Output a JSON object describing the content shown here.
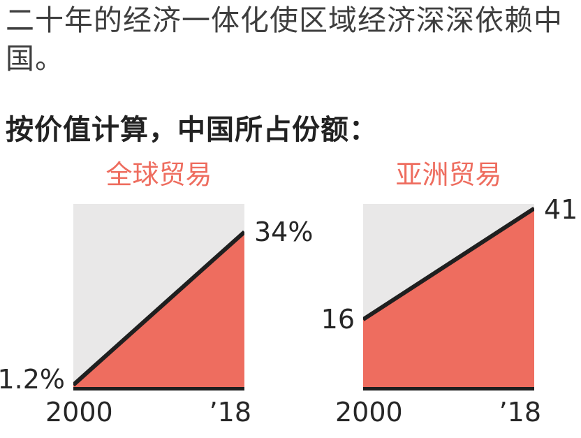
{
  "intro": "二十年的经济一体化使区域经济深深依赖中国。",
  "heading": "按价值计算，中国所占份额：",
  "colors": {
    "accent": "#ee6d5f",
    "chart_bg": "#e9e8e8",
    "line": "#1f1f1f",
    "text": "#3e3e3e"
  },
  "chart_data": [
    {
      "type": "area",
      "title": "全球贸易",
      "x": [
        "2000",
        "’18"
      ],
      "values": [
        1.2,
        34
      ],
      "start_label": "1.2%",
      "end_label": "34%",
      "ylim": [
        0,
        40
      ],
      "grid": false,
      "legend": "none"
    },
    {
      "type": "area",
      "title": "亚洲贸易",
      "x": [
        "2000",
        "’18"
      ],
      "values": [
        16,
        41
      ],
      "start_label": "16",
      "end_label": "41",
      "ylim": [
        0,
        42
      ],
      "grid": false,
      "legend": "none"
    }
  ]
}
